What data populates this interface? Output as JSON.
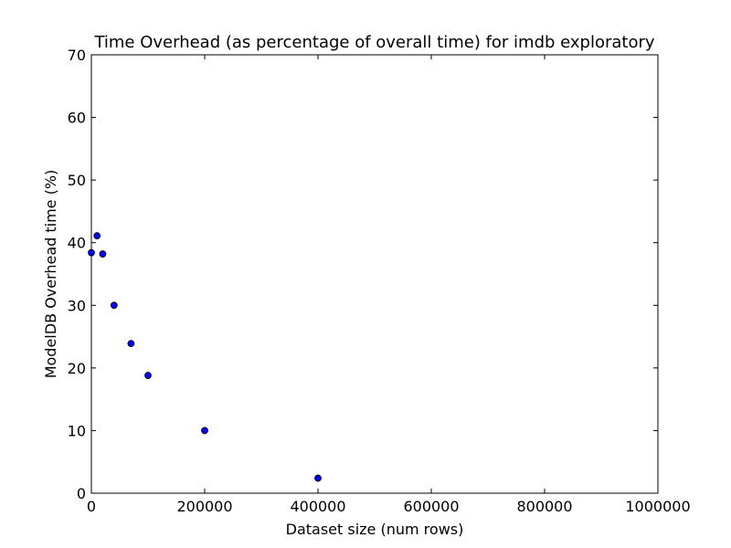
{
  "chart_data": {
    "type": "scatter",
    "title": "Time Overhead (as percentage of overall time) for imdb exploratory",
    "xlabel": "Dataset size (num rows)",
    "ylabel": "ModelDB Overhead time (%)",
    "xlim": [
      0,
      1000000
    ],
    "ylim": [
      0,
      70
    ],
    "xticks": [
      0,
      200000,
      400000,
      600000,
      800000,
      1000000
    ],
    "yticks": [
      0,
      10,
      20,
      30,
      40,
      50,
      60,
      70
    ],
    "grid": false,
    "legend": "none",
    "point_color": "#0000ff",
    "points": [
      {
        "x": 0,
        "y": 38.4
      },
      {
        "x": 10000,
        "y": 41.1
      },
      {
        "x": 20000,
        "y": 38.2
      },
      {
        "x": 40000,
        "y": 30.0
      },
      {
        "x": 70000,
        "y": 23.9
      },
      {
        "x": 100000,
        "y": 18.8
      },
      {
        "x": 200000,
        "y": 10.0
      },
      {
        "x": 400000,
        "y": 2.4
      }
    ]
  }
}
